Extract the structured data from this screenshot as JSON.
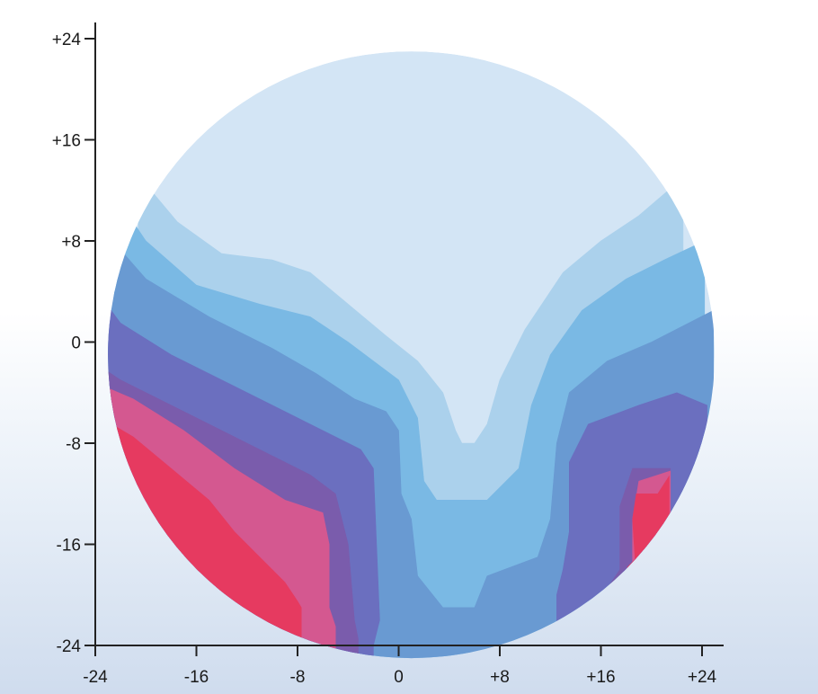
{
  "chart_data": {
    "type": "heatmap",
    "title": "",
    "xlabel": "",
    "ylabel": "",
    "xlim": [
      -24,
      24
    ],
    "ylim": [
      -24,
      24
    ],
    "x_ticks": [
      {
        "value": -24,
        "label": "-24"
      },
      {
        "value": -16,
        "label": "-16"
      },
      {
        "value": -8,
        "label": "-8"
      },
      {
        "value": 0,
        "label": "0"
      },
      {
        "value": 8,
        "label": "+8"
      },
      {
        "value": 16,
        "label": "+16"
      },
      {
        "value": 24,
        "label": "+24"
      }
    ],
    "y_ticks": [
      {
        "value": 24,
        "label": "+24"
      },
      {
        "value": 16,
        "label": "+16"
      },
      {
        "value": 8,
        "label": "+8"
      },
      {
        "value": 0,
        "label": "0"
      },
      {
        "value": -8,
        "label": "-8"
      },
      {
        "value": -16,
        "label": "-16"
      },
      {
        "value": -24,
        "label": "-24"
      }
    ],
    "region_shape": "circle",
    "region_center": [
      1,
      -1
    ],
    "region_radius": 24,
    "grid": false,
    "legend": "none",
    "levels": [
      {
        "name": "level-1",
        "color": "#d3e5f5"
      },
      {
        "name": "level-2",
        "color": "#abd1ec"
      },
      {
        "name": "level-3",
        "color": "#7ab9e4"
      },
      {
        "name": "level-4",
        "color": "#699ad2"
      },
      {
        "name": "level-5",
        "color": "#6b6fbf"
      },
      {
        "name": "level-6",
        "color": "#7a5cac"
      },
      {
        "name": "level-7",
        "color": "#d45890"
      },
      {
        "name": "level-8",
        "color": "#e63a60"
      }
    ],
    "contours": [
      {
        "level": "level-2",
        "points": [
          [
            -20.6,
            13.2
          ],
          [
            -17.5,
            9.5
          ],
          [
            -14,
            7
          ],
          [
            -10,
            6.5
          ],
          [
            -7,
            5.5
          ],
          [
            -4,
            3
          ],
          [
            -1,
            0.5
          ],
          [
            1.5,
            -1.5
          ],
          [
            3.5,
            -4
          ],
          [
            4.5,
            -7
          ],
          [
            5,
            -8
          ],
          [
            6,
            -8
          ],
          [
            7,
            -6.5
          ],
          [
            8,
            -3
          ],
          [
            10,
            1
          ],
          [
            13,
            5.5
          ],
          [
            16,
            8
          ],
          [
            19,
            10
          ],
          [
            22.5,
            13
          ]
        ]
      },
      {
        "level": "level-3",
        "points": [
          [
            -22.5,
            11.7
          ],
          [
            -20,
            8
          ],
          [
            -16,
            4.5
          ],
          [
            -11,
            3
          ],
          [
            -7,
            2
          ],
          [
            -4,
            0
          ],
          [
            -2,
            -1.5
          ],
          [
            0,
            -3
          ],
          [
            1.5,
            -6
          ],
          [
            2,
            -11
          ],
          [
            3,
            -12.5
          ],
          [
            7,
            -12.5
          ],
          [
            9.5,
            -10
          ],
          [
            10.5,
            -5
          ],
          [
            12,
            -1
          ],
          [
            14.5,
            2.5
          ],
          [
            18,
            5
          ],
          [
            21,
            6.5
          ],
          [
            24.2,
            8
          ]
        ]
      },
      {
        "level": "level-4",
        "points": [
          [
            -23.5,
            9
          ],
          [
            -20,
            5
          ],
          [
            -15,
            2
          ],
          [
            -10,
            -0.5
          ],
          [
            -6.5,
            -2.5
          ],
          [
            -3.5,
            -4.5
          ],
          [
            -1,
            -5.5
          ],
          [
            0,
            -7
          ],
          [
            0.2,
            -12
          ],
          [
            1,
            -14
          ],
          [
            1.5,
            -18.5
          ],
          [
            3.5,
            -21
          ],
          [
            6,
            -21
          ],
          [
            7,
            -18.5
          ],
          [
            11,
            -17
          ],
          [
            12,
            -14
          ],
          [
            12.5,
            -8
          ],
          [
            13.5,
            -4
          ],
          [
            16.5,
            -1.5
          ],
          [
            20,
            0
          ],
          [
            24.9,
            2.5
          ]
        ]
      },
      {
        "level": "level-5",
        "points": [
          [
            -24.6,
            5
          ],
          [
            -22,
            1.5
          ],
          [
            -18,
            -1
          ],
          [
            -14,
            -3
          ],
          [
            -10,
            -5
          ],
          [
            -6,
            -7
          ],
          [
            -3,
            -8.5
          ],
          [
            -2,
            -10
          ],
          [
            -1.5,
            -22
          ],
          [
            -2,
            -24
          ]
        ]
      },
      {
        "level": "level-5",
        "points": [
          [
            24.4,
            -5
          ],
          [
            22,
            -4
          ],
          [
            19,
            -5
          ],
          [
            15,
            -6.5
          ],
          [
            13.5,
            -9.5
          ],
          [
            13.5,
            -15
          ],
          [
            13,
            -18
          ],
          [
            12.5,
            -20
          ]
        ]
      },
      {
        "level": "level-6",
        "points": [
          [
            -25,
            -1
          ],
          [
            -22,
            -3
          ],
          [
            -18,
            -5
          ],
          [
            -14,
            -7
          ],
          [
            -10,
            -9
          ],
          [
            -7,
            -10.5
          ],
          [
            -5,
            -12
          ],
          [
            -4,
            -16
          ],
          [
            -3.5,
            -22
          ],
          [
            -3.2,
            -23.5
          ]
        ]
      },
      {
        "level": "level-6",
        "points": [
          [
            21.5,
            -10
          ],
          [
            18.5,
            -10
          ],
          [
            17.5,
            -13
          ],
          [
            17.5,
            -18
          ],
          [
            16.5,
            -19.5
          ]
        ]
      },
      {
        "level": "level-7",
        "points": [
          [
            -24.5,
            -3
          ],
          [
            -21,
            -4.5
          ],
          [
            -17,
            -7
          ],
          [
            -13,
            -10
          ],
          [
            -9,
            -12.5
          ],
          [
            -6,
            -13.5
          ],
          [
            -5.5,
            -16
          ],
          [
            -5.5,
            -21
          ],
          [
            -5,
            -22.5
          ]
        ]
      },
      {
        "level": "level-7",
        "points": [
          [
            21.5,
            -10.2
          ],
          [
            19,
            -11
          ],
          [
            18.5,
            -14
          ],
          [
            18.5,
            -17.5
          ],
          [
            17.2,
            -18.9
          ]
        ]
      },
      {
        "level": "level-8",
        "points": [
          [
            -22.7,
            -6.5
          ],
          [
            -21,
            -7.5
          ],
          [
            -18,
            -10
          ],
          [
            -15,
            -12.5
          ],
          [
            -13,
            -15
          ],
          [
            -11,
            -17
          ],
          [
            -9,
            -19
          ],
          [
            -8,
            -20.5
          ],
          [
            -7.7,
            -21
          ]
        ]
      },
      {
        "level": "level-8",
        "points": [
          [
            21.4,
            -10.6
          ],
          [
            20.5,
            -12
          ],
          [
            18.8,
            -12
          ],
          [
            18.5,
            -14
          ],
          [
            18.7,
            -17.2
          ],
          [
            18.1,
            -17.8
          ]
        ]
      }
    ]
  }
}
